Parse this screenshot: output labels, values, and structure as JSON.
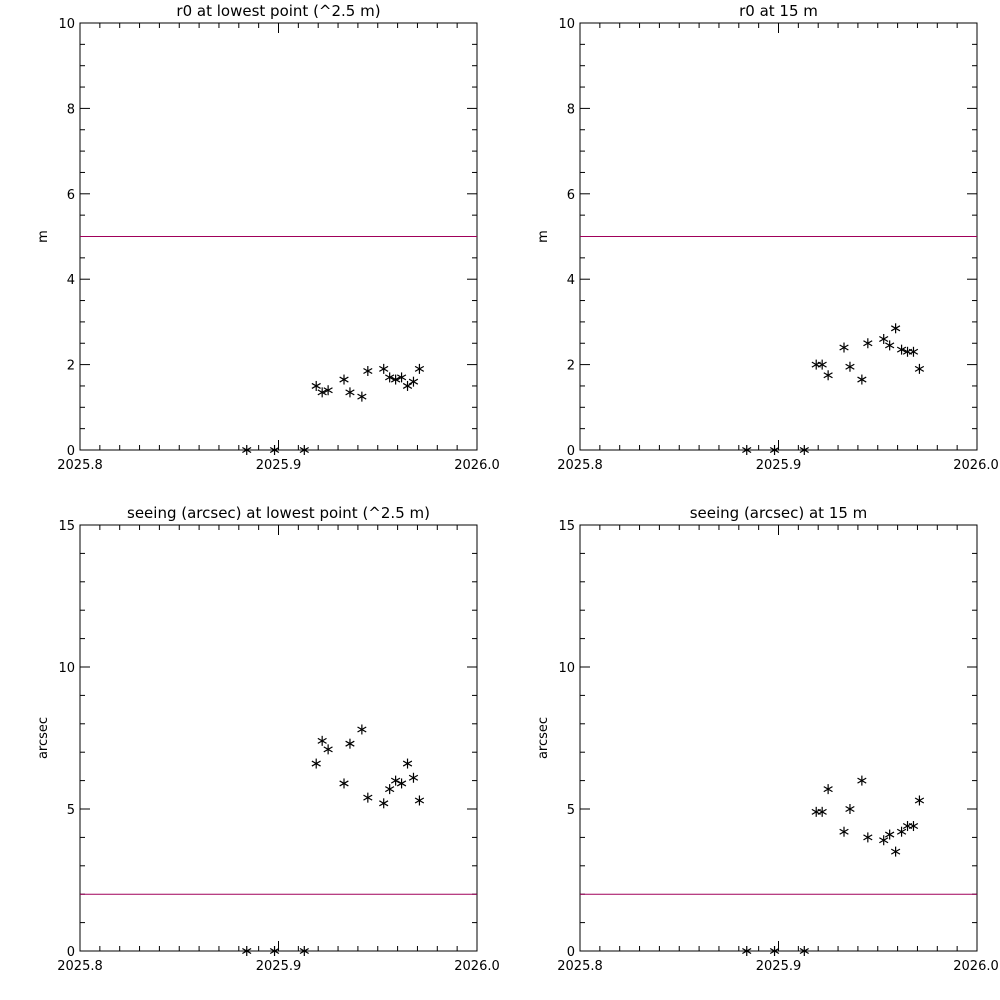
{
  "colors": {
    "background": "#ffffff",
    "axes": "#000000",
    "marker": "#000000",
    "threshold_line": "#a0005a"
  },
  "chart_data": [
    {
      "type": "scatter",
      "title": "r0 at lowest point (^2.5 m)",
      "xlabel": "",
      "ylabel": "m",
      "xlim": [
        2025.8,
        2026.0
      ],
      "ylim": [
        0,
        10
      ],
      "x_ticks": [
        "2025.8",
        "2025.9",
        "2026.0"
      ],
      "y_ticks": [
        "0",
        "2",
        "4",
        "6",
        "8",
        "10"
      ],
      "grid": false,
      "reference_line": 5,
      "series": [
        {
          "marker": "asterisk",
          "x": [
            2025.884,
            2025.898,
            2025.913,
            2025.919,
            2025.922,
            2025.925,
            2025.933,
            2025.936,
            2025.942,
            2025.945,
            2025.953,
            2025.956,
            2025.959,
            2025.962,
            2025.965,
            2025.968,
            2025.971
          ],
          "y": [
            0,
            0,
            0,
            1.5,
            1.35,
            1.4,
            1.65,
            1.35,
            1.25,
            1.85,
            1.9,
            1.7,
            1.65,
            1.7,
            1.5,
            1.6,
            1.9
          ]
        }
      ]
    },
    {
      "type": "scatter",
      "title": "r0 at 15 m",
      "xlabel": "",
      "ylabel": "m",
      "xlim": [
        2025.8,
        2026.0
      ],
      "ylim": [
        0,
        10
      ],
      "x_ticks": [
        "2025.8",
        "2025.9",
        "2026.0"
      ],
      "y_ticks": [
        "0",
        "2",
        "4",
        "6",
        "8",
        "10"
      ],
      "grid": false,
      "reference_line": 5,
      "series": [
        {
          "marker": "asterisk",
          "x": [
            2025.884,
            2025.898,
            2025.913,
            2025.919,
            2025.922,
            2025.925,
            2025.933,
            2025.936,
            2025.942,
            2025.945,
            2025.953,
            2025.956,
            2025.959,
            2025.962,
            2025.965,
            2025.968,
            2025.971
          ],
          "y": [
            0,
            0,
            0,
            2.0,
            2.0,
            1.75,
            2.4,
            1.95,
            1.65,
            2.5,
            2.6,
            2.45,
            2.85,
            2.35,
            2.3,
            2.3,
            1.9
          ]
        }
      ]
    },
    {
      "type": "scatter",
      "title": "seeing (arcsec) at lowest point (^2.5 m)",
      "xlabel": "",
      "ylabel": "arcsec",
      "xlim": [
        2025.8,
        2026.0
      ],
      "ylim": [
        0,
        15
      ],
      "x_ticks": [
        "2025.8",
        "2025.9",
        "2026.0"
      ],
      "y_ticks": [
        "0",
        "5",
        "10",
        "15"
      ],
      "grid": false,
      "reference_line": 2,
      "series": [
        {
          "marker": "asterisk",
          "x": [
            2025.884,
            2025.898,
            2025.913,
            2025.919,
            2025.922,
            2025.925,
            2025.933,
            2025.936,
            2025.942,
            2025.945,
            2025.953,
            2025.956,
            2025.959,
            2025.962,
            2025.965,
            2025.968,
            2025.971
          ],
          "y": [
            0,
            0,
            0,
            6.6,
            7.4,
            7.1,
            5.9,
            7.3,
            7.8,
            5.4,
            5.2,
            5.7,
            6.0,
            5.9,
            6.6,
            6.1,
            5.3
          ]
        }
      ]
    },
    {
      "type": "scatter",
      "title": "seeing (arcsec) at 15 m",
      "xlabel": "",
      "ylabel": "arcsec",
      "xlim": [
        2025.8,
        2026.0
      ],
      "ylim": [
        0,
        15
      ],
      "x_ticks": [
        "2025.8",
        "2025.9",
        "2026.0"
      ],
      "y_ticks": [
        "0",
        "5",
        "10",
        "15"
      ],
      "grid": false,
      "reference_line": 2,
      "series": [
        {
          "marker": "asterisk",
          "x": [
            2025.884,
            2025.898,
            2025.913,
            2025.919,
            2025.922,
            2025.925,
            2025.933,
            2025.936,
            2025.942,
            2025.945,
            2025.953,
            2025.956,
            2025.959,
            2025.962,
            2025.965,
            2025.968,
            2025.971
          ],
          "y": [
            0,
            0,
            0,
            4.9,
            4.9,
            5.7,
            4.2,
            5.0,
            6.0,
            4.0,
            3.9,
            4.1,
            3.5,
            4.2,
            4.4,
            4.4,
            5.3
          ]
        }
      ]
    }
  ]
}
